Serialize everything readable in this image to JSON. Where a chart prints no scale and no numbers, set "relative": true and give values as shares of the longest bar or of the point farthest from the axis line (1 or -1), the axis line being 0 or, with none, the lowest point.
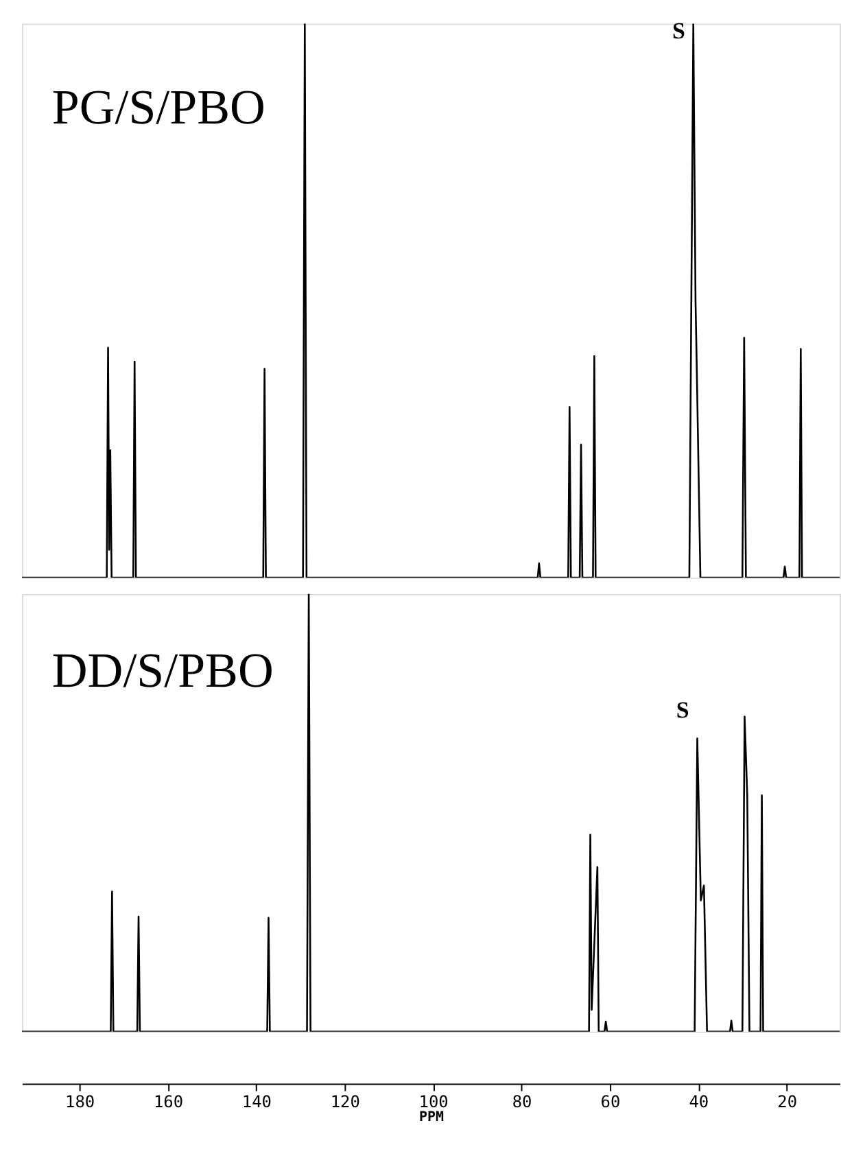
{
  "chart_data": [
    {
      "type": "line",
      "title": "PG/S/PBO",
      "relative": true,
      "tick_labels": false,
      "xlim": [
        193,
        8
      ],
      "annotations": [
        {
          "text": "S",
          "x": 41.1,
          "y": 1.0
        }
      ],
      "x": [
        193,
        173.8,
        173.5,
        173.25,
        173.0,
        172.7,
        167.8,
        167.5,
        167.2,
        138.4,
        138.1,
        137.8,
        129.4,
        129.0,
        128.6,
        76.3,
        76.0,
        75.7,
        69.4,
        69.1,
        68.8,
        66.8,
        66.5,
        66.2,
        63.8,
        63.5,
        63.2,
        42.0,
        41.1,
        40.6,
        40.3,
        39.5,
        30.0,
        29.6,
        29.2,
        20.7,
        20.4,
        20.1,
        17.1,
        16.8,
        16.5,
        8
      ],
      "series": [
        {
          "color": "#000000",
          "values": [
            0,
            0,
            0.415,
            0.05,
            0.23,
            0,
            0,
            0.39,
            0,
            0,
            0.377,
            0,
            0,
            1.0,
            0,
            0,
            0.026,
            0,
            0,
            0.308,
            0,
            0,
            0.24,
            0,
            0,
            0.4,
            0,
            0,
            1.0,
            0.5,
            0.37,
            0,
            0,
            0.433,
            0,
            0,
            0.02,
            0,
            0,
            0.413,
            0,
            0
          ]
        }
      ]
    },
    {
      "type": "line",
      "title": "DD/S/PBO",
      "relative": true,
      "tick_labels": "x",
      "xlabel": "PPM",
      "xlim": [
        193,
        8
      ],
      "annotations": [
        {
          "text": "S",
          "x": 40.2,
          "y": 0.67
        }
      ],
      "xticks": [
        180,
        160,
        140,
        120,
        100,
        80,
        60,
        40,
        20
      ],
      "x": [
        193,
        172.9,
        172.6,
        172.3,
        166.9,
        166.6,
        166.3,
        137.5,
        137.2,
        136.9,
        128.5,
        128.1,
        127.7,
        64.7,
        64.4,
        64.1,
        62.8,
        62.5,
        61.2,
        60.9,
        60.6,
        40.8,
        40.2,
        39.4,
        38.7,
        38.0,
        32.8,
        32.5,
        32.2,
        30.0,
        29.5,
        28.9,
        28.4,
        25.9,
        25.6,
        25.3,
        8
      ],
      "series": [
        {
          "color": "#000000",
          "values": [
            0,
            0,
            0.32,
            0,
            0,
            0.263,
            0,
            0,
            0.26,
            0,
            0,
            1.0,
            0,
            0,
            0.45,
            0.05,
            0.376,
            0,
            0,
            0.023,
            0,
            0,
            0.67,
            0.3,
            0.334,
            0,
            0,
            0.025,
            0,
            0,
            0.72,
            0.54,
            0,
            0,
            0.54,
            0,
            0
          ]
        }
      ]
    }
  ]
}
